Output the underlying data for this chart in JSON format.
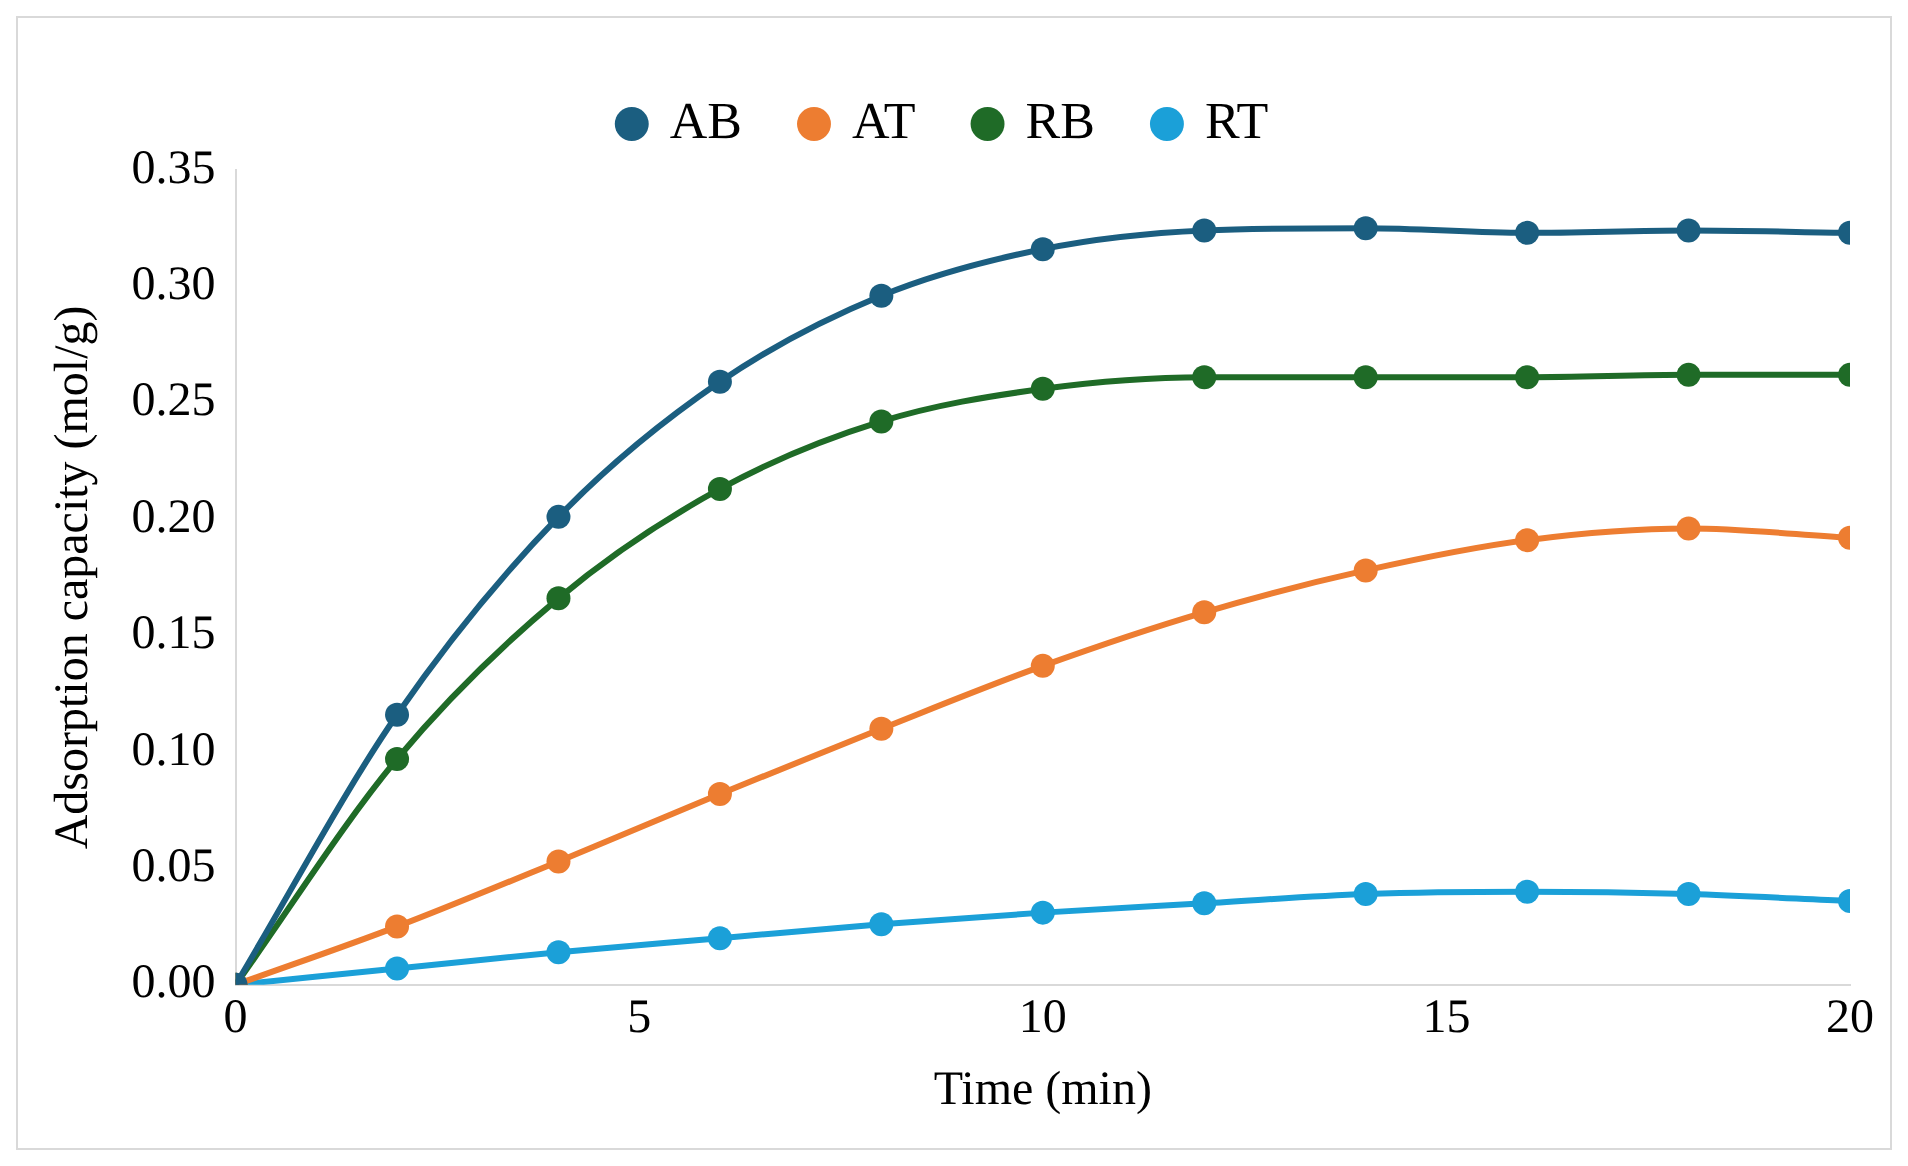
{
  "chart_data": {
    "type": "line",
    "xlabel": "Time (min)",
    "ylabel": "Adsorption capacity (mol/g)",
    "x": [
      0,
      2,
      4,
      6,
      8,
      10,
      12,
      14,
      16,
      18,
      20
    ],
    "series": [
      {
        "name": "AB",
        "color": "#1b5e80",
        "values": [
          0,
          0.116,
          0.201,
          0.259,
          0.296,
          0.316,
          0.324,
          0.325,
          0.323,
          0.324,
          0.323
        ]
      },
      {
        "name": "AT",
        "color": "#ed7d31",
        "values": [
          0,
          0.025,
          0.053,
          0.082,
          0.11,
          0.137,
          0.16,
          0.178,
          0.191,
          0.196,
          0.192
        ]
      },
      {
        "name": "RB",
        "color": "#1f6b27",
        "values": [
          0,
          0.097,
          0.166,
          0.213,
          0.242,
          0.256,
          0.261,
          0.261,
          0.261,
          0.262,
          0.262
        ]
      },
      {
        "name": "RT",
        "color": "#1ba0d8",
        "values": [
          0,
          0.007,
          0.014,
          0.02,
          0.026,
          0.031,
          0.035,
          0.039,
          0.04,
          0.039,
          0.036
        ]
      }
    ],
    "xlim": [
      0,
      20
    ],
    "xticks": [
      0,
      5,
      10,
      15,
      20
    ],
    "ylim": [
      0,
      0.35
    ],
    "yticks": [
      {
        "value": 0,
        "label": "0.00"
      },
      {
        "value": 0.05,
        "label": "0.05"
      },
      {
        "value": 0.1,
        "label": "0.10"
      },
      {
        "value": 0.15,
        "label": "0.15"
      },
      {
        "value": 0.2,
        "label": "0.20"
      },
      {
        "value": 0.25,
        "label": "0.25"
      },
      {
        "value": 0.3,
        "label": "0.30"
      },
      {
        "value": 0.35,
        "label": "0.35"
      }
    ],
    "grid": false,
    "legend": "top",
    "marker": "circle",
    "line_style": "solid"
  }
}
